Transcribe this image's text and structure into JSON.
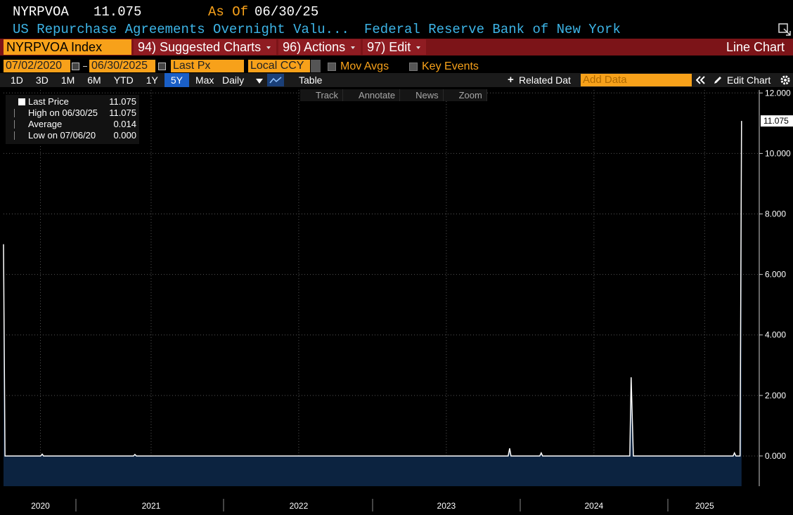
{
  "header": {
    "ticker": "NYRPVOA",
    "as_of_label": "As Of",
    "as_of": "06/30/25",
    "description": "US Repurchase Agreements Overnight Valu...",
    "source": "Federal Reserve Bank of New York"
  },
  "toolbar": {
    "security": "NYRPVOA Index",
    "menus": [
      "94) Suggested Charts",
      "96) Actions",
      "97) Edit"
    ],
    "chart_type": "Line Chart"
  },
  "controls": {
    "start_date": "07/02/2020",
    "end_date": "06/30/2025",
    "field": "Last Px",
    "currency": "Local CCY",
    "options": [
      "Mov Avgs",
      "Key Events"
    ]
  },
  "range_bar": {
    "ranges": [
      "1D",
      "3D",
      "1M",
      "6M",
      "YTD",
      "1Y",
      "5Y",
      "Max"
    ],
    "frequency": "Daily",
    "table": "Table",
    "related": "Related Dat",
    "add_data": "Add Data",
    "edit_chart": "Edit Chart"
  },
  "chart_tools": [
    "Track",
    "Annotate",
    "News",
    "Zoom"
  ],
  "legend": {
    "stats": [
      {
        "label": "High on 06/30/25",
        "value": "11.075"
      },
      {
        "label": "Average",
        "value": "0.014"
      },
      {
        "label": "Low on 07/06/20",
        "value": "0.000"
      }
    ]
  },
  "chart_data": {
    "type": "line",
    "series": [
      {
        "name": "Last Price",
        "color": "#ffffff",
        "fill": "#0c2340",
        "x": [
          2020.5,
          2020.51,
          2020.752,
          2020.762,
          2020.771,
          2021.381,
          2021.39,
          2021.4,
          2023.919,
          2023.929,
          2023.938,
          2024.133,
          2024.143,
          2024.152,
          2024.743,
          2024.752,
          2024.767,
          2025.443,
          2025.452,
          2025.462,
          2025.49,
          2025.5
        ],
        "values": [
          7.0,
          0,
          0,
          0.06,
          0,
          0,
          0.05,
          0,
          0,
          0.25,
          0,
          0,
          0.1,
          0,
          0,
          2.6,
          0,
          0,
          0.1,
          0,
          0,
          11.075
        ]
      }
    ],
    "xlim": [
      2020.5,
      2025.62
    ],
    "xticks": [
      {
        "value": 2020.75,
        "label": "2020"
      },
      {
        "value": 2021.5,
        "label": "2021"
      },
      {
        "value": 2022.5,
        "label": "2022"
      },
      {
        "value": 2023.5,
        "label": "2023"
      },
      {
        "value": 2024.5,
        "label": "2024"
      },
      {
        "value": 2025.25,
        "label": "2025"
      }
    ],
    "ylim": [
      -1.0,
      12.1
    ],
    "yticks": [
      {
        "value": 0,
        "label": "0.000"
      },
      {
        "value": 2,
        "label": "2.000"
      },
      {
        "value": 4,
        "label": "4.000"
      },
      {
        "value": 6,
        "label": "6.000"
      },
      {
        "value": 8,
        "label": "8.000"
      },
      {
        "value": 10,
        "label": "10.000"
      },
      {
        "value": 12,
        "label": "12.000"
      }
    ],
    "grid": true
  }
}
